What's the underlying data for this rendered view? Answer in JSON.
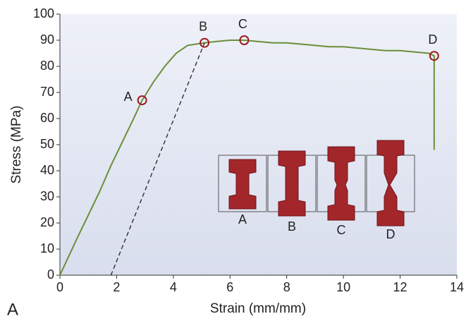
{
  "chart_data": {
    "type": "line",
    "x_label": "Strain (mm/mm)",
    "y_label": "Stress (MPa)",
    "panel_label": "A",
    "xlim": [
      0,
      14
    ],
    "xticks": [
      0,
      2,
      4,
      6,
      8,
      10,
      12,
      14
    ],
    "ylim": [
      0,
      100
    ],
    "yticks": [
      0,
      10,
      20,
      30,
      40,
      50,
      60,
      70,
      80,
      90,
      100
    ],
    "grid": false,
    "series": [
      {
        "color": "#6b8e3a",
        "dash": false,
        "x": [
          0,
          0.3,
          0.6,
          1.0,
          1.4,
          1.8,
          2.2,
          2.6,
          2.9,
          3.3,
          3.7,
          4.1,
          4.5,
          4.8,
          5.1,
          5.5,
          6.0,
          6.5,
          7.0,
          7.5,
          8.0,
          8.5,
          9.0,
          9.5,
          10.0,
          10.5,
          11.0,
          11.5,
          12.0,
          12.5,
          13.0,
          13.2,
          13.2
        ],
        "values": [
          0,
          7,
          14,
          23,
          32,
          42,
          51,
          60,
          67,
          74,
          80,
          85,
          88,
          88.5,
          89,
          89.5,
          90,
          90,
          89.5,
          89,
          89,
          88.5,
          88,
          87.5,
          87.5,
          87,
          86.5,
          86,
          86,
          85.5,
          85,
          84,
          48
        ]
      },
      {
        "color": "#222222",
        "dash": true,
        "x": [
          1.8,
          5.1
        ],
        "values": [
          0,
          89
        ]
      }
    ],
    "annotations": [
      {
        "label": "A",
        "x": 2.9,
        "y": 67
      },
      {
        "label": "B",
        "x": 5.1,
        "y": 89
      },
      {
        "label": "C",
        "x": 6.5,
        "y": 90
      },
      {
        "label": "D",
        "x": 13.2,
        "y": 84
      }
    ],
    "annotation_color": "#9b1c1c",
    "inset_labels": [
      "A",
      "B",
      "C",
      "D"
    ]
  }
}
